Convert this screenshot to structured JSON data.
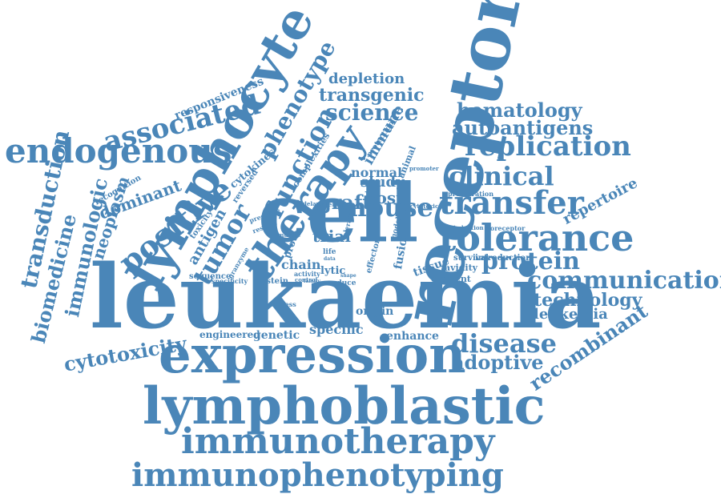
{
  "colors": {
    "word": "#4a86b8",
    "background": "#ffffff"
  },
  "words": [
    "leukaemia",
    "cell",
    "receptor",
    "lymphocyte",
    "expression",
    "lymphoblastic",
    "immunotherapy",
    "immunophenotyping",
    "therapy",
    "endogenous",
    "tolerance",
    "transfer",
    "replication",
    "communication",
    "positive",
    "associated",
    "protein",
    "function",
    "clinical",
    "disease",
    "mouse",
    "science",
    "tumor",
    "phenotype",
    "transgenic",
    "depletion",
    "hematology",
    "autoantigens",
    "transduction",
    "biomedicine",
    "immunologic",
    "neoplasm",
    "dominant",
    "antigen",
    "cytotoxicity",
    "recombinant",
    "adoptive",
    "technology",
    "leukemia",
    "responsiveness",
    "repertoire",
    "specific",
    "genetic",
    "engineered",
    "enhance",
    "origin",
    "sequence",
    "specificity",
    "epstein",
    "express",
    "reduce",
    "element",
    "avidity",
    "survival",
    "introduction",
    "tissue",
    "fusion",
    "model",
    "trial",
    "chain",
    "lytic",
    "graft",
    "host",
    "study",
    "normal",
    "immune",
    "animal",
    "protection",
    "cytokines",
    "complexities",
    "reversed",
    "recognition",
    "proto",
    "presence",
    "restore",
    "toxicity",
    "granzyme",
    "murine",
    "delayed",
    "deletion",
    "promoter",
    "proliferation",
    "cytotoxic",
    "induction",
    "coreceptor",
    "effector",
    "life",
    "data",
    "tolerate",
    "shape",
    "control",
    "activity",
    "family"
  ]
}
